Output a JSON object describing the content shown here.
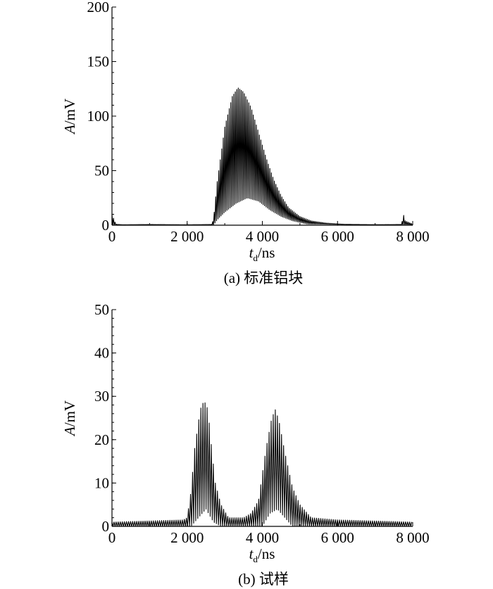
{
  "chart_data": [
    {
      "type": "line",
      "id": "a",
      "xlabel_italic": "t",
      "xlabel_sub": "d",
      "xlabel_unit": "/ns",
      "ylabel_italic": "A",
      "ylabel_unit": "/mV",
      "xlim": [
        0,
        8000
      ],
      "ylim": [
        0,
        200
      ],
      "xticks": [
        0,
        2000,
        4000,
        6000,
        8000
      ],
      "xtick_labels": [
        "0",
        "2 000",
        "4 000",
        "6 000",
        "8 000"
      ],
      "yticks": [
        0,
        50,
        100,
        150,
        200
      ],
      "ytick_labels": [
        "0",
        "50",
        "100",
        "150",
        "200"
      ],
      "caption": "(a) 标准铝块",
      "series": [
        {
          "envelope_points": [
            [
              0,
              10
            ],
            [
              100,
              1
            ],
            [
              300,
              0.5
            ],
            [
              1000,
              0.8
            ],
            [
              2000,
              0.5
            ],
            [
              2650,
              0.8
            ],
            [
              2700,
              5
            ],
            [
              2800,
              40
            ],
            [
              3000,
              90
            ],
            [
              3200,
              118
            ],
            [
              3350,
              126
            ],
            [
              3500,
              122
            ],
            [
              3700,
              108
            ],
            [
              3900,
              85
            ],
            [
              4100,
              62
            ],
            [
              4300,
              42
            ],
            [
              4500,
              27
            ],
            [
              4700,
              16
            ],
            [
              5000,
              8
            ],
            [
              5300,
              4
            ],
            [
              5700,
              2
            ],
            [
              6200,
              0.8
            ],
            [
              7000,
              0.5
            ],
            [
              7700,
              0.8
            ],
            [
              7760,
              9
            ],
            [
              7800,
              4
            ],
            [
              8000,
              1
            ]
          ],
          "baseline_points": [
            [
              0,
              0
            ],
            [
              2700,
              0
            ],
            [
              2800,
              5
            ],
            [
              3000,
              12
            ],
            [
              3300,
              20
            ],
            [
              3600,
              25
            ],
            [
              3900,
              22
            ],
            [
              4200,
              14
            ],
            [
              4500,
              8
            ],
            [
              4800,
              4
            ],
            [
              5200,
              1
            ],
            [
              8000,
              0
            ]
          ],
          "carrier_period_ns": 40
        }
      ]
    },
    {
      "type": "line",
      "id": "b",
      "xlabel_italic": "t",
      "xlabel_sub": "d",
      "xlabel_unit": "/ns",
      "ylabel_italic": "A",
      "ylabel_unit": "/mV",
      "xlim": [
        0,
        8000
      ],
      "ylim": [
        0,
        50
      ],
      "xticks": [
        0,
        2000,
        4000,
        6000,
        8000
      ],
      "xtick_labels": [
        "0",
        "2 000",
        "4 000",
        "6 000",
        "8 000"
      ],
      "yticks": [
        0,
        10,
        20,
        30,
        40,
        50
      ],
      "ytick_labels": [
        "0",
        "10",
        "20",
        "30",
        "40",
        "50"
      ],
      "caption": "(b) 试样",
      "series": [
        {
          "envelope_points": [
            [
              0,
              1
            ],
            [
              1900,
              1.5
            ],
            [
              2000,
              2
            ],
            [
              2100,
              8
            ],
            [
              2200,
              18
            ],
            [
              2350,
              27
            ],
            [
              2450,
              29
            ],
            [
              2550,
              27
            ],
            [
              2650,
              18
            ],
            [
              2750,
              10
            ],
            [
              2900,
              5
            ],
            [
              3100,
              2
            ],
            [
              3500,
              2
            ],
            [
              3700,
              3
            ],
            [
              3900,
              6
            ],
            [
              4100,
              18
            ],
            [
              4250,
              25
            ],
            [
              4350,
              27
            ],
            [
              4450,
              24
            ],
            [
              4600,
              17
            ],
            [
              4800,
              9
            ],
            [
              5000,
              5
            ],
            [
              5300,
              2
            ],
            [
              6000,
              1.5
            ],
            [
              8000,
              1
            ]
          ],
          "baseline_points": [
            [
              0,
              0
            ],
            [
              2100,
              0
            ],
            [
              2300,
              2
            ],
            [
              2500,
              4
            ],
            [
              2700,
              1
            ],
            [
              2900,
              0
            ],
            [
              4000,
              0
            ],
            [
              4200,
              3
            ],
            [
              4400,
              4
            ],
            [
              4600,
              2
            ],
            [
              4800,
              0
            ],
            [
              8000,
              0
            ]
          ],
          "carrier_period_ns": 55
        }
      ]
    }
  ]
}
